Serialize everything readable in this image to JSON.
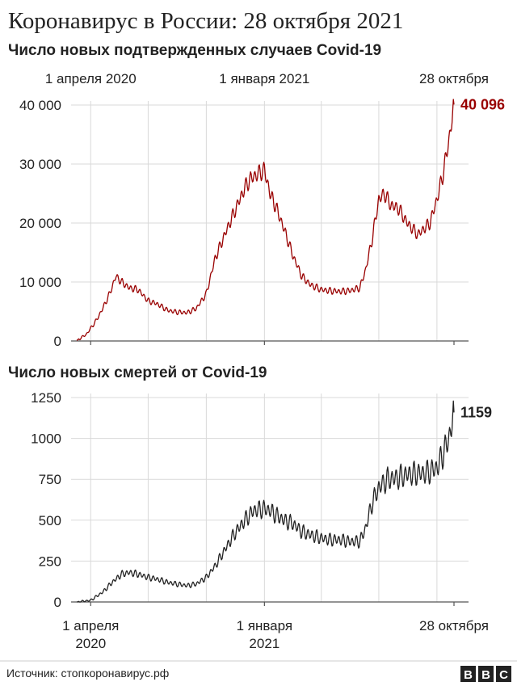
{
  "title": "Коронавирус в России: 28 октября 2021",
  "source": "Источник: стопкоронавирус.рф",
  "logo": {
    "letters": [
      "B",
      "B",
      "C"
    ]
  },
  "colors": {
    "cases": "#990000",
    "deaths": "#222222",
    "grid": "#d9d9d9"
  },
  "chart_data": [
    {
      "type": "line",
      "title": "Число новых подтвержденных случаев Covid-19",
      "x_range": [
        "2020-03-01",
        "2021-10-28"
      ],
      "ylim": [
        0,
        40000
      ],
      "yticks": [
        {
          "value": 0,
          "label": "0"
        },
        {
          "value": 10000,
          "label": "10 000"
        },
        {
          "value": 20000,
          "label": "20 000"
        },
        {
          "value": 30000,
          "label": "30 000"
        },
        {
          "value": 40000,
          "label": "40 000"
        }
      ],
      "xtick_labels": [
        {
          "date": "2020-04-01",
          "label": "1 апреля 2020"
        },
        {
          "date": "2021-01-01",
          "label": "1 января 2021"
        },
        {
          "date": "2021-10-28",
          "label": "28 октября"
        }
      ],
      "grid": true,
      "end_label": "40 096",
      "series": [
        {
          "color": "#990000",
          "x": [
            "2020-03-10",
            "2020-03-25",
            "2020-04-10",
            "2020-04-20",
            "2020-05-01",
            "2020-05-11",
            "2020-05-20",
            "2020-06-01",
            "2020-06-15",
            "2020-07-01",
            "2020-07-15",
            "2020-08-01",
            "2020-08-15",
            "2020-09-01",
            "2020-09-15",
            "2020-10-01",
            "2020-10-15",
            "2020-11-01",
            "2020-11-15",
            "2020-12-01",
            "2020-12-10",
            "2020-12-24",
            "2021-01-01",
            "2021-01-10",
            "2021-01-20",
            "2021-02-01",
            "2021-02-15",
            "2021-03-01",
            "2021-03-15",
            "2021-04-01",
            "2021-04-15",
            "2021-05-01",
            "2021-05-15",
            "2021-06-01",
            "2021-06-10",
            "2021-06-20",
            "2021-07-01",
            "2021-07-10",
            "2021-07-20",
            "2021-08-01",
            "2021-08-15",
            "2021-09-01",
            "2021-09-10",
            "2021-09-20",
            "2021-10-01",
            "2021-10-10",
            "2021-10-20",
            "2021-10-28"
          ],
          "values": [
            100,
            1100,
            3500,
            5500,
            8000,
            11000,
            10000,
            9000,
            8700,
            6800,
            6300,
            5200,
            4900,
            4800,
            5500,
            8000,
            14000,
            18500,
            22000,
            26000,
            27500,
            28500,
            29000,
            25000,
            22500,
            19000,
            14500,
            11000,
            9500,
            8700,
            8500,
            8400,
            8500,
            9000,
            12000,
            17000,
            24000,
            25000,
            23000,
            22500,
            20000,
            18000,
            19000,
            20000,
            24000,
            28000,
            34000,
            40096
          ]
        }
      ]
    },
    {
      "type": "line",
      "title": "Число новых смертей от Covid-19",
      "x_range": [
        "2020-03-01",
        "2021-10-28"
      ],
      "ylim": [
        0,
        1250
      ],
      "yticks": [
        {
          "value": 0,
          "label": "0"
        },
        {
          "value": 250,
          "label": "250"
        },
        {
          "value": 500,
          "label": "500"
        },
        {
          "value": 750,
          "label": "750"
        },
        {
          "value": 1000,
          "label": "1000"
        },
        {
          "value": 1250,
          "label": "1250"
        }
      ],
      "xtick_labels": [
        {
          "date": "2020-04-01",
          "label": "1 апреля",
          "label2": "2020"
        },
        {
          "date": "2021-01-01",
          "label": "1 января",
          "label2": "2021"
        },
        {
          "date": "2021-10-28",
          "label": "28 октября",
          "label2": ""
        }
      ],
      "grid": true,
      "end_label": "1159",
      "series": [
        {
          "color": "#222222",
          "x": [
            "2020-03-10",
            "2020-04-01",
            "2020-04-20",
            "2020-05-05",
            "2020-05-20",
            "2020-06-01",
            "2020-06-15",
            "2020-07-01",
            "2020-07-15",
            "2020-08-01",
            "2020-08-15",
            "2020-09-01",
            "2020-09-15",
            "2020-10-01",
            "2020-10-15",
            "2020-11-01",
            "2020-11-15",
            "2020-12-01",
            "2020-12-15",
            "2021-01-01",
            "2021-01-10",
            "2021-01-20",
            "2021-02-01",
            "2021-02-15",
            "2021-03-01",
            "2021-03-15",
            "2021-04-01",
            "2021-04-15",
            "2021-05-01",
            "2021-05-15",
            "2021-06-01",
            "2021-06-10",
            "2021-06-20",
            "2021-07-01",
            "2021-07-15",
            "2021-08-01",
            "2021-08-15",
            "2021-09-01",
            "2021-09-15",
            "2021-10-01",
            "2021-10-10",
            "2021-10-20",
            "2021-10-28"
          ],
          "values": [
            0,
            10,
            60,
            120,
            170,
            180,
            170,
            150,
            140,
            120,
            110,
            100,
            110,
            150,
            220,
            330,
            420,
            500,
            560,
            570,
            560,
            530,
            500,
            480,
            430,
            410,
            390,
            380,
            380,
            370,
            370,
            450,
            600,
            700,
            750,
            760,
            780,
            785,
            790,
            820,
            900,
            1000,
            1159
          ]
        }
      ]
    }
  ]
}
